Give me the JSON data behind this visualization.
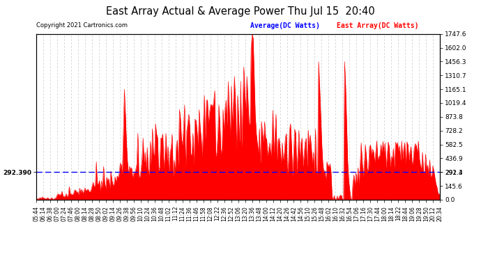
{
  "title": "East Array Actual & Average Power Thu Jul 15  20:40",
  "copyright": "Copyright 2021 Cartronics.com",
  "average_label": "Average(DC Watts)",
  "east_label": "East Array(DC Watts)",
  "average_value": 292.39,
  "y_right_ticks": [
    0.0,
    145.6,
    291.3,
    436.9,
    582.5,
    728.2,
    873.8,
    1019.4,
    1165.1,
    1310.7,
    1456.3,
    1602.0,
    1747.6
  ],
  "y_max": 1747.6,
  "y_min": 0.0,
  "background_color": "#ffffff",
  "grid_color": "#c8c8c8",
  "fill_color": "#ff0000",
  "line_color": "#ff0000",
  "average_line_color": "#0000ff",
  "title_color": "#000000",
  "title_fontsize": 11,
  "x_labels": [
    "05:44",
    "06:14",
    "06:38",
    "07:00",
    "07:24",
    "07:46",
    "08:00",
    "08:14",
    "08:28",
    "08:50",
    "09:02",
    "09:14",
    "09:26",
    "09:38",
    "09:56",
    "10:10",
    "10:24",
    "10:36",
    "10:48",
    "11:02",
    "11:12",
    "11:24",
    "11:36",
    "11:46",
    "11:58",
    "12:08",
    "12:22",
    "12:36",
    "12:52",
    "13:06",
    "13:20",
    "13:36",
    "13:48",
    "14:00",
    "14:12",
    "14:20",
    "14:26",
    "14:42",
    "14:56",
    "15:10",
    "15:26",
    "15:48",
    "16:02",
    "16:10",
    "16:32",
    "16:54",
    "17:06",
    "17:16",
    "17:30",
    "17:44",
    "18:00",
    "18:14",
    "18:22",
    "18:44",
    "19:06",
    "19:28",
    "19:50",
    "20:12",
    "20:34"
  ]
}
